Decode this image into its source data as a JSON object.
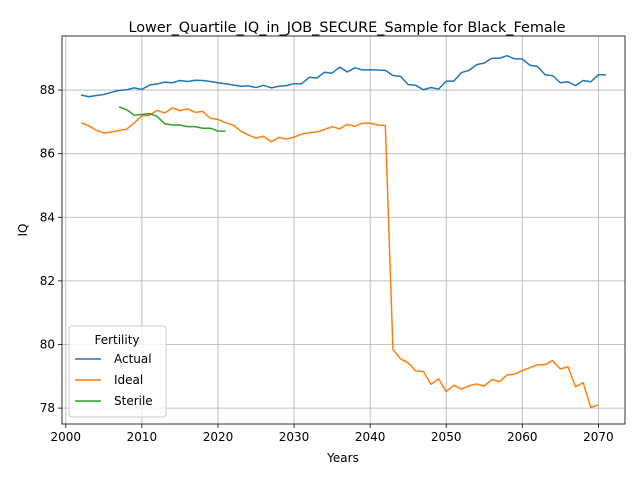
{
  "chart_data": {
    "type": "line",
    "title": "Lower_Quartile_IQ_in_JOB_SECURE_Sample for Black_Female",
    "xlabel": "Years",
    "ylabel": "IQ",
    "xlim": [
      1999.5,
      2073.5
    ],
    "ylim": [
      77.5,
      89.7
    ],
    "xticks": [
      2000,
      2010,
      2020,
      2030,
      2040,
      2050,
      2060,
      2070
    ],
    "yticks": [
      78,
      80,
      82,
      84,
      86,
      88
    ],
    "grid": true,
    "legend": {
      "title": "Fertility",
      "position": "lower-left"
    },
    "series": [
      {
        "name": "Actual",
        "color": "#1f77b4",
        "x_start": 2002,
        "values": [
          87.85,
          87.79,
          87.83,
          87.86,
          87.93,
          87.99,
          88.01,
          88.07,
          88.02,
          88.16,
          88.19,
          88.25,
          88.23,
          88.3,
          88.27,
          88.31,
          88.3,
          88.27,
          88.23,
          88.2,
          88.16,
          88.12,
          88.13,
          88.08,
          88.15,
          88.07,
          88.12,
          88.14,
          88.2,
          88.2,
          88.4,
          88.38,
          88.56,
          88.53,
          88.72,
          88.57,
          88.7,
          88.63,
          88.64,
          88.63,
          88.62,
          88.46,
          88.43,
          88.17,
          88.15,
          88.01,
          88.08,
          88.03,
          88.28,
          88.28,
          88.55,
          88.62,
          88.8,
          88.85,
          89.0,
          89.0,
          89.08,
          88.98,
          88.98,
          88.78,
          88.74,
          88.48,
          88.45,
          88.23,
          88.26,
          88.14,
          88.3,
          88.26,
          88.48,
          88.48
        ]
      },
      {
        "name": "Ideal",
        "color": "#ff7f0e",
        "x_start": 2002,
        "values": [
          86.97,
          86.88,
          86.74,
          86.65,
          86.68,
          86.73,
          86.77,
          86.97,
          87.19,
          87.21,
          87.36,
          87.28,
          87.44,
          87.35,
          87.41,
          87.3,
          87.33,
          87.11,
          87.08,
          86.97,
          86.9,
          86.71,
          86.59,
          86.49,
          86.55,
          86.37,
          86.51,
          86.46,
          86.52,
          86.62,
          86.66,
          86.68,
          86.76,
          86.85,
          86.78,
          86.92,
          86.86,
          86.96,
          86.96,
          86.9,
          86.88,
          79.85,
          79.55,
          79.42,
          79.17,
          79.15,
          78.75,
          78.92,
          78.52,
          78.72,
          78.6,
          78.7,
          78.76,
          78.69,
          78.9,
          78.83,
          79.04,
          79.07,
          79.18,
          79.27,
          79.36,
          79.37,
          79.49,
          79.23,
          79.3,
          78.67,
          78.8,
          78.02,
          78.1
        ]
      },
      {
        "name": "Sterile",
        "color": "#2ca02c",
        "x_start": 2007,
        "values": [
          87.47,
          87.38,
          87.21,
          87.23,
          87.26,
          87.17,
          86.94,
          86.9,
          86.9,
          86.85,
          86.85,
          86.8,
          86.8,
          86.71,
          86.71
        ]
      }
    ]
  }
}
